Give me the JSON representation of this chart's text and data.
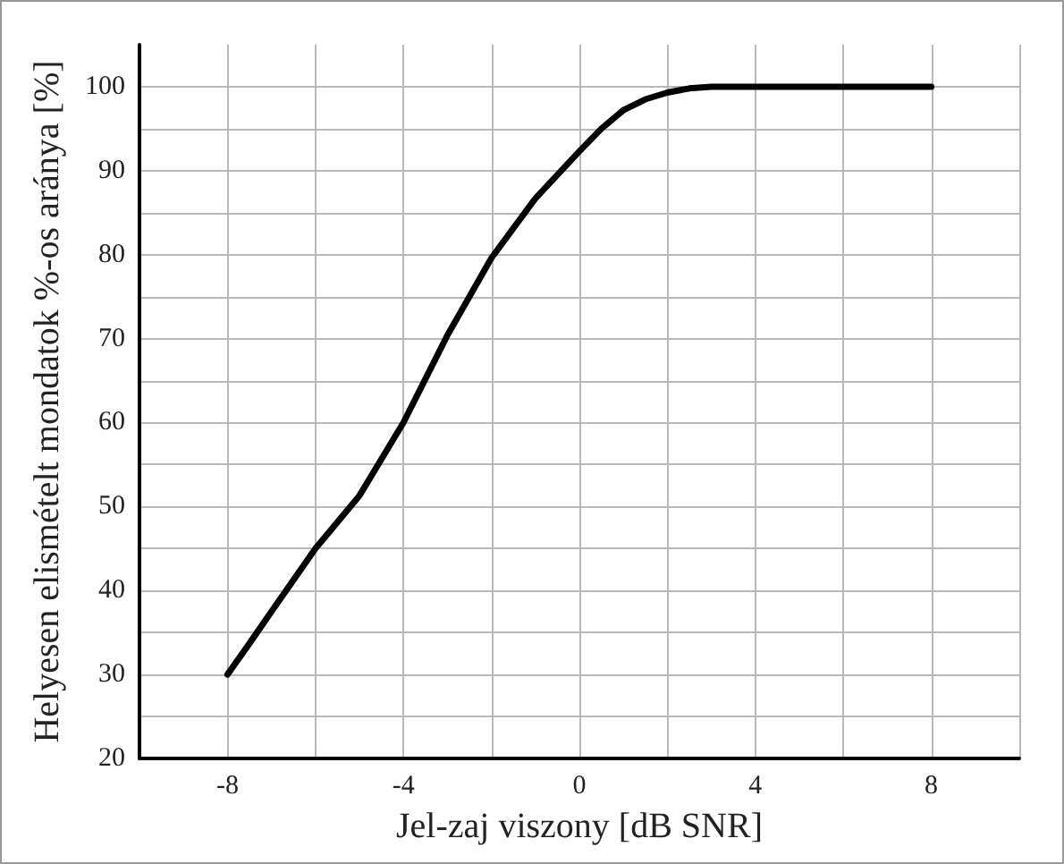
{
  "chart_data": {
    "type": "line",
    "xlabel": "Jel-zaj viszony [dB SNR]",
    "ylabel": "Helyesen elismételt mondatok %-os aránya [%]",
    "x": [
      -8,
      -7.5,
      -7,
      -6,
      -5,
      -4,
      -3,
      -2,
      -1,
      0,
      0.5,
      1,
      1.5,
      2,
      2.5,
      3,
      8
    ],
    "series": [
      {
        "color": "#000000",
        "values": [
          30,
          33.7,
          37.5,
          45,
          51.3,
          60,
          70.4,
          79.6,
          86.7,
          92.3,
          95,
          97.2,
          98.5,
          99.3,
          99.8,
          100,
          100
        ]
      }
    ],
    "xlim": [
      -10,
      10
    ],
    "xticks": [
      {
        "value": -10,
        "label": null
      },
      -8,
      {
        "value": -6,
        "label": null
      },
      -4,
      {
        "value": -2,
        "label": null
      },
      0,
      {
        "value": 2,
        "label": null
      },
      4,
      {
        "value": 6,
        "label": null
      },
      8,
      {
        "value": 10,
        "label": null
      }
    ],
    "ylim": [
      20,
      105
    ],
    "yticks": [
      20,
      {
        "value": 25,
        "label": null
      },
      30,
      {
        "value": 35,
        "label": null
      },
      40,
      {
        "value": 45,
        "label": null
      },
      50,
      {
        "value": 55,
        "label": null
      },
      60,
      {
        "value": 65,
        "label": null
      },
      70,
      {
        "value": 75,
        "label": null
      },
      80,
      {
        "value": 85,
        "label": null
      },
      90,
      {
        "value": 95,
        "label": null
      },
      100
    ],
    "grid": true,
    "marker": "none",
    "line_style": "solid"
  }
}
